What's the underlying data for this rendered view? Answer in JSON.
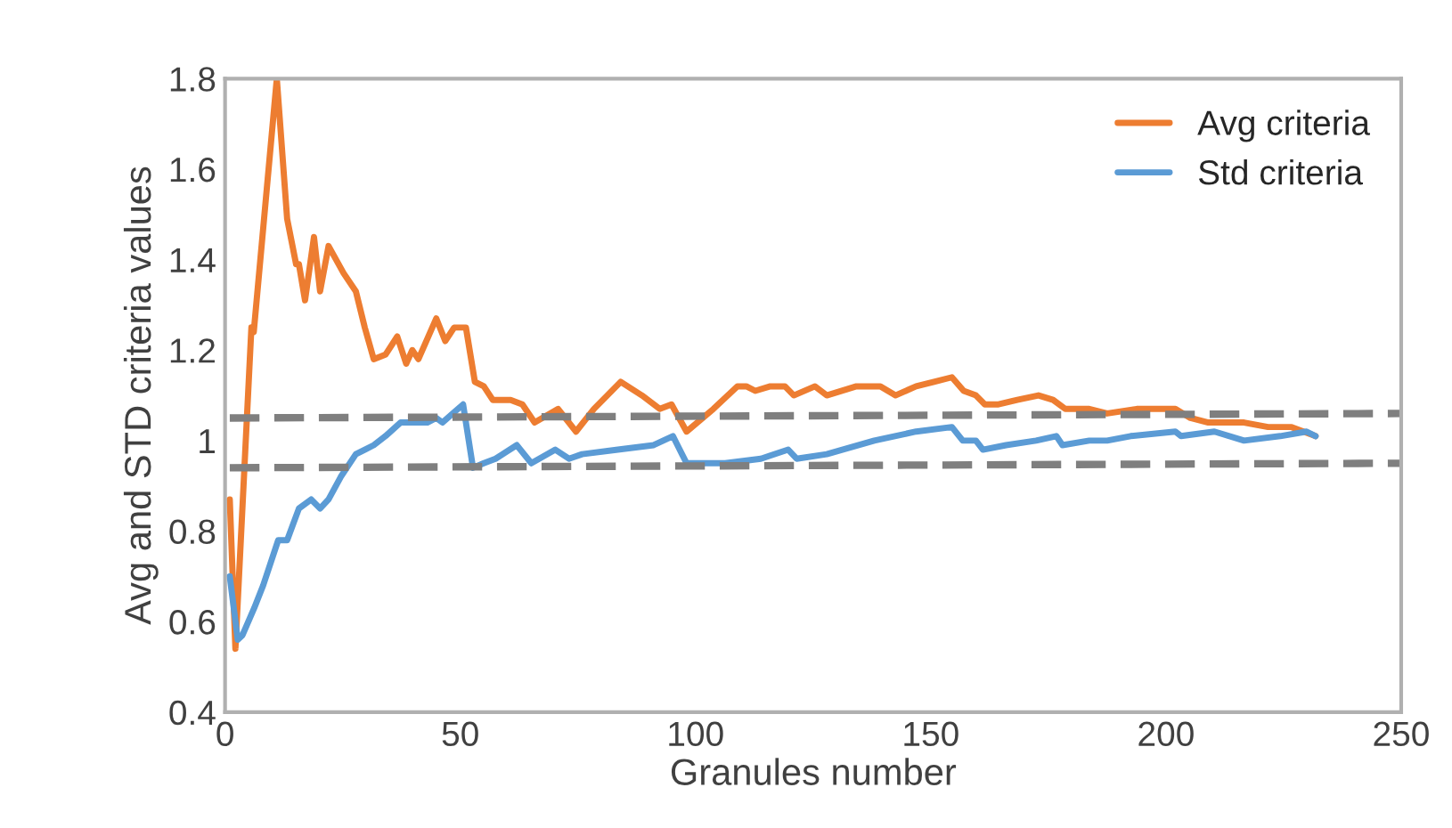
{
  "chart_data": {
    "type": "line",
    "xlabel": "Granules number",
    "ylabel": "Avg and STD criteria values",
    "xlim": [
      0,
      250
    ],
    "xticks": [
      0,
      50,
      100,
      150,
      200,
      250
    ],
    "ylim": [
      0.4,
      1.8
    ],
    "yticks": [
      {
        "value": 0.4,
        "label": "0.4"
      },
      {
        "value": 0.6,
        "label": "0.6"
      },
      {
        "value": 0.8,
        "label": "0.8"
      },
      1,
      {
        "value": 1.2,
        "label": "1.2"
      },
      {
        "value": 1.4,
        "label": "1.4"
      },
      {
        "value": 1.6,
        "label": "1.6"
      },
      {
        "value": 1.8,
        "label": "1.8"
      }
    ],
    "grid": false,
    "legend": "top right",
    "line_style": "solid",
    "marker": "none",
    "series": [
      {
        "name": "Avg criteria",
        "color": "#ed7d31",
        "x": [
          1,
          2.2,
          5.6,
          6.1,
          11,
          13.2,
          15.1,
          15.7,
          17,
          18.9,
          20.2,
          22,
          25.2,
          27.8,
          29.7,
          31.6,
          34.1,
          36.6,
          38.5,
          39.8,
          41.1,
          44.9,
          46.8,
          48.7,
          51.2,
          53.1,
          55,
          56.9,
          60.7,
          63.2,
          65.8,
          70.8,
          74.6,
          78.4,
          84.1,
          88.6,
          92.4,
          94.9,
          98.1,
          103.8,
          108.9,
          110.8,
          112.7,
          115.9,
          119,
          120.9,
          125.4,
          127.9,
          134.2,
          139.3,
          142.5,
          146.9,
          150.7,
          154.5,
          157,
          159.6,
          161.5,
          164.4,
          168.4,
          172.9,
          176,
          178.6,
          183.7,
          187.5,
          193.8,
          202,
          205.2,
          209,
          212.8,
          216.6,
          221.7,
          226.7,
          231.8
        ],
        "values": [
          0.87,
          0.54,
          1.25,
          1.24,
          1.8,
          1.49,
          1.39,
          1.39,
          1.31,
          1.45,
          1.33,
          1.43,
          1.37,
          1.33,
          1.25,
          1.18,
          1.19,
          1.23,
          1.17,
          1.2,
          1.18,
          1.27,
          1.22,
          1.25,
          1.25,
          1.13,
          1.12,
          1.09,
          1.09,
          1.08,
          1.04,
          1.07,
          1.02,
          1.07,
          1.13,
          1.1,
          1.07,
          1.08,
          1.02,
          1.07,
          1.12,
          1.12,
          1.11,
          1.12,
          1.12,
          1.1,
          1.12,
          1.1,
          1.12,
          1.12,
          1.1,
          1.12,
          1.13,
          1.14,
          1.11,
          1.1,
          1.08,
          1.08,
          1.09,
          1.1,
          1.09,
          1.07,
          1.07,
          1.06,
          1.07,
          1.07,
          1.05,
          1.04,
          1.04,
          1.04,
          1.03,
          1.03,
          1.01
        ]
      },
      {
        "name": "Std criteria",
        "color": "#5b9bd5",
        "x": [
          1,
          2.7,
          3.7,
          6.2,
          8.1,
          11.3,
          13.2,
          15.7,
          18.3,
          20.2,
          22,
          24.6,
          27.8,
          29.7,
          31.6,
          34.1,
          37.3,
          39.8,
          43,
          44.9,
          46.2,
          50.6,
          52.7,
          55,
          57.5,
          62,
          65.1,
          70.2,
          73.1,
          75.9,
          83.5,
          91.1,
          95.2,
          98.1,
          106.3,
          113.9,
          119.7,
          121.5,
          127.9,
          138,
          146.9,
          154.5,
          156.8,
          159.6,
          161.1,
          166,
          172.4,
          176.7,
          178,
          183.7,
          187.5,
          192.5,
          202,
          203.2,
          210.3,
          216.6,
          224.3,
          229.9,
          231.8
        ],
        "values": [
          0.7,
          0.56,
          0.57,
          0.63,
          0.68,
          0.78,
          0.78,
          0.85,
          0.87,
          0.85,
          0.87,
          0.92,
          0.97,
          0.98,
          0.99,
          1.01,
          1.04,
          1.04,
          1.04,
          1.05,
          1.04,
          1.08,
          0.94,
          0.95,
          0.96,
          0.99,
          0.95,
          0.98,
          0.96,
          0.97,
          0.98,
          0.99,
          1.01,
          0.95,
          0.95,
          0.96,
          0.98,
          0.96,
          0.97,
          1.0,
          1.02,
          1.03,
          1.0,
          1.0,
          0.98,
          0.99,
          1.0,
          1.01,
          0.99,
          1.0,
          1.0,
          1.01,
          1.02,
          1.01,
          1.02,
          1.0,
          1.01,
          1.02,
          1.01
        ]
      },
      {
        "color": "#7f7f7f",
        "line_style": "dashed",
        "x": [
          1,
          250
        ],
        "values": [
          1.05,
          1.06
        ]
      },
      {
        "color": "#7f7f7f",
        "line_style": "dashed",
        "x": [
          1,
          250
        ],
        "values": [
          0.94,
          0.95
        ]
      }
    ]
  }
}
